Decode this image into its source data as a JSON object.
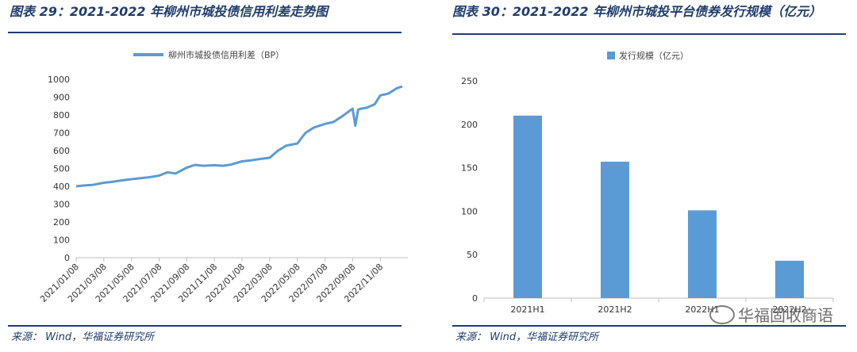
{
  "chart_data": [
    {
      "type": "line",
      "title": "图表 29：2021-2022 年柳州市城投债信用利差走势图",
      "legend": "柳州市城投债信用利差（BP）",
      "ylim": [
        0,
        1000
      ],
      "yticks": [
        0,
        100,
        200,
        300,
        400,
        500,
        600,
        700,
        800,
        900,
        1000
      ],
      "xticks": [
        "2021/01/08",
        "2021/03/08",
        "2021/05/08",
        "2021/07/08",
        "2021/09/08",
        "2021/11/08",
        "2022/01/08",
        "2022/03/08",
        "2022/05/08",
        "2022/07/08",
        "2022/09/08",
        "2022/11/08"
      ],
      "series": [
        {
          "name": "柳州市城投债信用利差（BP）",
          "color": "#5b9bd5",
          "x": [
            0,
            0.3,
            0.6,
            1,
            1.3,
            1.6,
            2,
            2.3,
            2.6,
            3,
            3.3,
            3.6,
            4,
            4.3,
            4.6,
            5,
            5.3,
            5.6,
            6,
            6.3,
            6.6,
            7,
            7.3,
            7.6,
            8,
            8.3,
            8.6,
            9,
            9.3,
            9.6,
            10,
            10.1,
            10.2,
            10.3,
            10.5,
            10.8,
            11,
            11.3,
            11.6,
            11.8
          ],
          "values": [
            400,
            405,
            408,
            420,
            425,
            432,
            440,
            445,
            450,
            460,
            478,
            472,
            505,
            520,
            515,
            518,
            515,
            522,
            540,
            545,
            552,
            560,
            600,
            628,
            640,
            700,
            730,
            750,
            760,
            790,
            835,
            740,
            830,
            835,
            840,
            860,
            910,
            920,
            950,
            960
          ]
        }
      ]
    },
    {
      "type": "bar",
      "title": "图表 30：2021-2022 年柳州市城投平台债券发行规模（亿元）",
      "legend": "发行规模（亿元）",
      "categories": [
        "2021H1",
        "2021H2",
        "2022H1",
        "2022H2"
      ],
      "values": [
        210,
        157,
        101,
        43
      ],
      "color": "#5b9bd5",
      "ylim": [
        0,
        250
      ],
      "yticks": [
        0,
        50,
        100,
        150,
        200,
        250
      ]
    }
  ],
  "left_source": "来源： Wind，华福证券研究所",
  "right_source": "来源： Wind，华福证券研究所",
  "watermark": "华福固收商语"
}
